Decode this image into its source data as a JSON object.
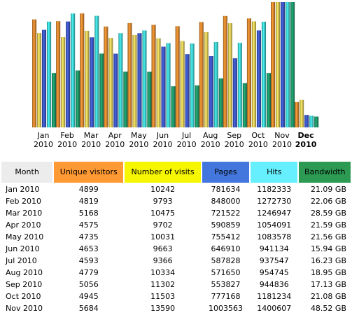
{
  "chart_data": {
    "type": "bar",
    "categories": [
      "Jan",
      "Feb",
      "Mar",
      "Apr",
      "May",
      "Jun",
      "Jul",
      "Aug",
      "Sep",
      "Oct",
      "Nov",
      "Dec"
    ],
    "years": [
      "2010",
      "2010",
      "2010",
      "2010",
      "2010",
      "2010",
      "2010",
      "2010",
      "2010",
      "2010",
      "2010",
      "2010"
    ],
    "current_month_index": 11,
    "series": [
      {
        "name": "Unique visitors",
        "values": [
          4899,
          4819,
          5168,
          4575,
          4735,
          4653,
          4593,
          4779,
          5056,
          4945,
          5684,
          1150
        ]
      },
      {
        "name": "Number of visits",
        "values": [
          10242,
          9793,
          10475,
          9702,
          10031,
          9663,
          9366,
          10334,
          11302,
          11503,
          13590,
          2980
        ]
      },
      {
        "name": "Pages",
        "values": [
          781634,
          848000,
          721522,
          590859,
          755412,
          646910,
          587828,
          571650,
          553827,
          777168,
          1003563,
          100000
        ]
      },
      {
        "name": "Hits",
        "values": [
          1182333,
          1272730,
          1246947,
          1054091,
          1083578,
          941134,
          937547,
          954745,
          944836,
          1181234,
          1400607,
          130000
        ]
      },
      {
        "name": "Bandwidth",
        "values": [
          21.09,
          22.06,
          28.59,
          21.59,
          21.56,
          15.94,
          16.23,
          18.95,
          17.13,
          21.08,
          48.52,
          4.2
        ]
      }
    ],
    "series_colors": [
      "#e08a30",
      "#e6d05a",
      "#3e58c8",
      "#3fd6d6",
      "#1f9a6a"
    ]
  },
  "table": {
    "headers": {
      "month": "Month",
      "unique_visitors": "Unique visitors",
      "visits": "Number of visits",
      "pages": "Pages",
      "hits": "Hits",
      "bandwidth": "Bandwidth"
    },
    "header_colors": {
      "month": "#ececec",
      "unique_visitors": "#ff9933",
      "visits": "#f6f600",
      "pages": "#4477dd",
      "hits": "#66f0ff",
      "bandwidth": "#2c9a52"
    },
    "rows": [
      {
        "month": "Jan 2010",
        "unique_visitors": "4899",
        "visits": "10242",
        "pages": "781634",
        "hits": "1182333",
        "bandwidth": "21.09 GB"
      },
      {
        "month": "Feb 2010",
        "unique_visitors": "4819",
        "visits": "9793",
        "pages": "848000",
        "hits": "1272730",
        "bandwidth": "22.06 GB"
      },
      {
        "month": "Mar 2010",
        "unique_visitors": "5168",
        "visits": "10475",
        "pages": "721522",
        "hits": "1246947",
        "bandwidth": "28.59 GB"
      },
      {
        "month": "Apr 2010",
        "unique_visitors": "4575",
        "visits": "9702",
        "pages": "590859",
        "hits": "1054091",
        "bandwidth": "21.59 GB"
      },
      {
        "month": "May 2010",
        "unique_visitors": "4735",
        "visits": "10031",
        "pages": "755412",
        "hits": "1083578",
        "bandwidth": "21.56 GB"
      },
      {
        "month": "Jun 2010",
        "unique_visitors": "4653",
        "visits": "9663",
        "pages": "646910",
        "hits": "941134",
        "bandwidth": "15.94 GB"
      },
      {
        "month": "Jul 2010",
        "unique_visitors": "4593",
        "visits": "9366",
        "pages": "587828",
        "hits": "937547",
        "bandwidth": "16.23 GB"
      },
      {
        "month": "Aug 2010",
        "unique_visitors": "4779",
        "visits": "10334",
        "pages": "571650",
        "hits": "954745",
        "bandwidth": "18.95 GB"
      },
      {
        "month": "Sep 2010",
        "unique_visitors": "5056",
        "visits": "11302",
        "pages": "553827",
        "hits": "944836",
        "bandwidth": "17.13 GB"
      },
      {
        "month": "Oct 2010",
        "unique_visitors": "4945",
        "visits": "11503",
        "pages": "777168",
        "hits": "1181234",
        "bandwidth": "21.08 GB"
      },
      {
        "month": "Nov 2010",
        "unique_visitors": "5684",
        "visits": "13590",
        "pages": "1003563",
        "hits": "1400607",
        "bandwidth": "48.52 GB"
      }
    ]
  }
}
